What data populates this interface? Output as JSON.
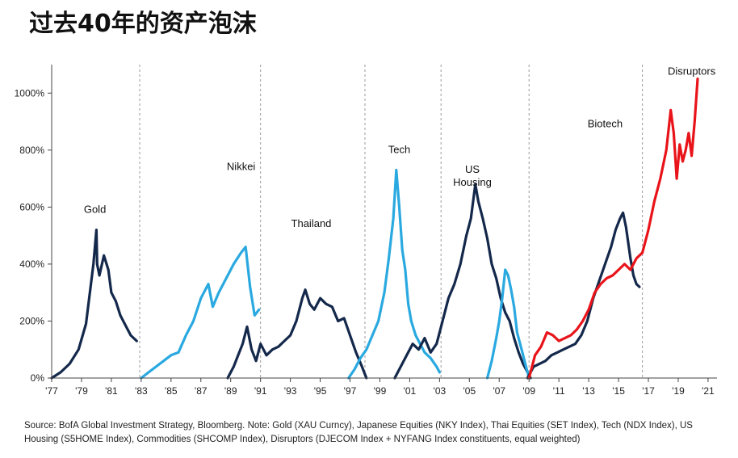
{
  "page_title": "过去40年的资产泡沫",
  "source_note": "Source: BofA Global Investment Strategy, Bloomberg. Note: Gold (XAU Curncy), Japanese Equities (NKY Index), Thai Equities (SET Index), Tech (NDX Index), US Housing (S5HOME Index), Commodities (SHCOMP Index), Disruptors (DJECOM Index + NYFANG Index constituents, equal weighted)",
  "colors": {
    "navy": "#14284b",
    "light_blue": "#2aa9e0",
    "red": "#e8141a",
    "divider": "#9a9a9a",
    "axis": "#444444"
  },
  "chart_data": {
    "type": "line",
    "title": "过去40年的资产泡沫",
    "ylim": [
      0,
      1100
    ],
    "xlim": [
      1977,
      2021.6
    ],
    "yticks": [
      0,
      200,
      400,
      600,
      800,
      1000
    ],
    "ytick_labels": [
      "0%",
      "200%",
      "400%",
      "600%",
      "800%",
      "1000%"
    ],
    "xticks": [
      1977,
      1979,
      1981,
      1983,
      1985,
      1987,
      1989,
      1991,
      1993,
      1995,
      1997,
      1999,
      2001,
      2003,
      2005,
      2007,
      2009,
      2011,
      2013,
      2015,
      2017,
      2019,
      2021
    ],
    "xtick_labels": [
      "'77",
      "'79",
      "'81",
      "'83",
      "'85",
      "'87",
      "'89",
      "'91",
      "'93",
      "'95",
      "'97",
      "'99",
      "'01",
      "'03",
      "'05",
      "'07",
      "'09",
      "'11",
      "'13",
      "'15",
      "'17",
      "'19",
      "'21"
    ],
    "dividers": [
      1982.9,
      1991.0,
      1998.0,
      2003.1,
      2009.0,
      2016.6
    ],
    "series": [
      {
        "name": "Gold",
        "color": "navy",
        "label_at": [
          1979.9,
          580
        ],
        "x": [
          1977.0,
          1977.6,
          1978.2,
          1978.8,
          1979.3,
          1979.8,
          1980.0,
          1980.05,
          1980.2,
          1980.5,
          1980.8,
          1981.0,
          1981.3,
          1981.6,
          1981.9,
          1982.3,
          1982.7
        ],
        "y": [
          0,
          20,
          50,
          100,
          190,
          400,
          520,
          400,
          360,
          430,
          380,
          300,
          270,
          220,
          190,
          150,
          130
        ]
      },
      {
        "name": "Nikkei",
        "color": "light_blue",
        "label_at": [
          1989.7,
          730
        ],
        "x": [
          1983.0,
          1983.5,
          1984.0,
          1984.5,
          1985.0,
          1985.5,
          1986.0,
          1986.5,
          1987.0,
          1987.5,
          1987.8,
          1988.2,
          1988.7,
          1989.2,
          1989.7,
          1990.0,
          1990.3,
          1990.6,
          1990.9
        ],
        "y": [
          0,
          20,
          40,
          60,
          80,
          90,
          150,
          200,
          280,
          330,
          250,
          300,
          350,
          400,
          440,
          460,
          320,
          220,
          240
        ]
      },
      {
        "name": "Thailand",
        "color": "navy",
        "label_at": [
          1994.4,
          530
        ],
        "x": [
          1988.8,
          1989.2,
          1989.5,
          1989.8,
          1990.1,
          1990.4,
          1990.7,
          1991.0,
          1991.4,
          1991.8,
          1992.2,
          1992.6,
          1993.0,
          1993.4,
          1993.8,
          1994.0,
          1994.3,
          1994.6,
          1995.0,
          1995.4,
          1995.8,
          1996.2,
          1996.6,
          1997.0,
          1997.4,
          1997.8,
          1998.1
        ],
        "y": [
          0,
          40,
          80,
          120,
          180,
          100,
          60,
          120,
          80,
          100,
          110,
          130,
          150,
          200,
          280,
          310,
          260,
          240,
          280,
          260,
          250,
          200,
          210,
          150,
          90,
          40,
          0
        ]
      },
      {
        "name": "Tech",
        "color": "light_blue",
        "label_at": [
          2000.3,
          790
        ],
        "x": [
          1996.9,
          1997.3,
          1997.7,
          1998.1,
          1998.5,
          1998.9,
          1999.3,
          1999.6,
          1999.9,
          2000.1,
          2000.3,
          2000.5,
          2000.7,
          2000.9,
          2001.1,
          2001.4,
          2001.7,
          2002.0,
          2002.4,
          2002.8,
          2003.0
        ],
        "y": [
          0,
          30,
          70,
          100,
          150,
          200,
          300,
          420,
          560,
          730,
          600,
          450,
          380,
          260,
          200,
          150,
          120,
          90,
          70,
          40,
          20
        ]
      },
      {
        "name": "US Housing",
        "color": "navy",
        "label_at": [
          2005.2,
          720
        ],
        "x": [
          2000.0,
          2000.4,
          2000.8,
          2001.2,
          2001.6,
          2002.0,
          2002.4,
          2002.8,
          2003.2,
          2003.6,
          2004.0,
          2004.4,
          2004.8,
          2005.1,
          2005.4,
          2005.6,
          2005.9,
          2006.2,
          2006.5,
          2006.8,
          2007.1,
          2007.4,
          2007.7,
          2008.0,
          2008.3,
          2008.6,
          2008.9,
          2009.1
        ],
        "y": [
          0,
          40,
          80,
          120,
          100,
          140,
          90,
          120,
          200,
          280,
          330,
          400,
          500,
          560,
          680,
          620,
          560,
          490,
          400,
          350,
          280,
          230,
          200,
          140,
          90,
          50,
          20,
          0
        ]
      },
      {
        "name": "Commodities",
        "color": "light_blue",
        "label_at": null,
        "x": [
          2006.2,
          2006.5,
          2006.8,
          2007.0,
          2007.2,
          2007.4,
          2007.6,
          2007.8,
          2008.0,
          2008.2,
          2008.5,
          2008.8,
          2009.0
        ],
        "y": [
          0,
          60,
          140,
          200,
          280,
          380,
          360,
          310,
          250,
          160,
          100,
          40,
          0
        ]
      },
      {
        "name": "Biotech",
        "color": "navy",
        "label_at": [
          2014.1,
          880
        ],
        "x": [
          2008.9,
          2009.3,
          2009.7,
          2010.1,
          2010.5,
          2010.9,
          2011.3,
          2011.7,
          2012.1,
          2012.5,
          2012.9,
          2013.3,
          2013.7,
          2014.1,
          2014.5,
          2014.8,
          2015.1,
          2015.3,
          2015.5,
          2015.8,
          2016.0,
          2016.2,
          2016.4
        ],
        "y": [
          0,
          40,
          50,
          60,
          80,
          90,
          100,
          110,
          120,
          150,
          200,
          280,
          340,
          400,
          460,
          520,
          560,
          580,
          530,
          420,
          360,
          330,
          320
        ]
      },
      {
        "name": "Disruptors",
        "color": "red",
        "label_at": [
          2019.9,
          1065
        ],
        "x": [
          2009.0,
          2009.4,
          2009.8,
          2010.2,
          2010.6,
          2011.0,
          2011.4,
          2011.8,
          2012.2,
          2012.6,
          2013.0,
          2013.4,
          2013.8,
          2014.2,
          2014.6,
          2015.0,
          2015.4,
          2015.8,
          2016.2,
          2016.6,
          2017.0,
          2017.4,
          2017.8,
          2018.2,
          2018.5,
          2018.7,
          2018.9,
          2019.1,
          2019.3,
          2019.5,
          2019.7,
          2019.9,
          2020.1,
          2020.3
        ],
        "y": [
          0,
          80,
          110,
          160,
          150,
          130,
          140,
          150,
          170,
          200,
          240,
          300,
          330,
          350,
          360,
          380,
          400,
          380,
          420,
          440,
          520,
          620,
          700,
          800,
          940,
          860,
          700,
          820,
          760,
          800,
          860,
          780,
          900,
          1050
        ]
      }
    ]
  }
}
